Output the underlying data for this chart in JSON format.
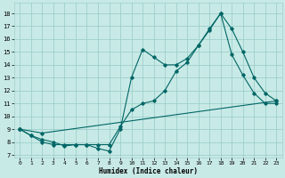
{
  "xlabel": "Humidex (Indice chaleur)",
  "xlim": [
    -0.5,
    23.5
  ],
  "ylim": [
    6.8,
    18.8
  ],
  "yticks": [
    7,
    8,
    9,
    10,
    11,
    12,
    13,
    14,
    15,
    16,
    17,
    18
  ],
  "xticks": [
    0,
    1,
    2,
    3,
    4,
    5,
    6,
    7,
    8,
    9,
    10,
    11,
    12,
    13,
    14,
    15,
    16,
    17,
    18,
    19,
    20,
    21,
    22,
    23
  ],
  "background_color": "#c8eae6",
  "grid_color": "#9ecfcb",
  "line_color": "#006666",
  "line1_x": [
    0,
    1,
    2,
    3,
    4,
    5,
    6,
    7,
    8,
    9,
    10,
    11,
    12,
    13,
    14,
    15,
    16,
    17,
    18,
    19,
    20,
    21,
    22,
    23
  ],
  "line1_y": [
    9.0,
    8.5,
    8.0,
    7.8,
    7.8,
    7.8,
    7.8,
    7.5,
    7.3,
    9.0,
    13.0,
    15.2,
    14.6,
    14.0,
    14.0,
    14.5,
    15.5,
    16.8,
    18.0,
    14.8,
    13.2,
    11.8,
    11.0,
    11.0
  ],
  "line2_x": [
    0,
    1,
    2,
    3,
    4,
    5,
    6,
    7,
    8,
    9,
    10,
    11,
    12,
    13,
    14,
    15,
    16,
    17,
    18,
    19,
    20,
    21,
    22,
    23
  ],
  "line2_y": [
    9.0,
    8.5,
    8.2,
    8.0,
    7.7,
    7.8,
    7.8,
    7.8,
    7.8,
    9.2,
    10.5,
    11.0,
    11.2,
    12.0,
    13.5,
    14.2,
    15.5,
    16.7,
    18.0,
    16.8,
    15.0,
    13.0,
    11.8,
    11.2
  ],
  "line3_x": [
    0,
    2,
    23
  ],
  "line3_y": [
    9.0,
    8.7,
    11.2
  ]
}
